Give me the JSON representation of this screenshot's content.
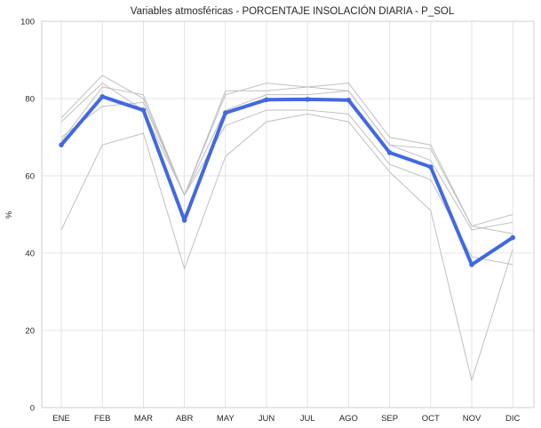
{
  "chart_data": {
    "type": "line",
    "title": "Variables atmosféricas - PORCENTAJE INSOLACIÓN DIARIA - P_SOL",
    "xlabel": "",
    "ylabel": "%",
    "categories": [
      "ENE",
      "FEB",
      "MAR",
      "ABR",
      "MAY",
      "JUN",
      "JUL",
      "AGO",
      "SEP",
      "OCT",
      "NOV",
      "DIC"
    ],
    "yticks": [
      "0",
      "20",
      "40",
      "60",
      "80",
      "100"
    ],
    "ylim": [
      0,
      100
    ],
    "grid": true,
    "legend": "none",
    "background_series": [
      {
        "values": [
          46,
          68,
          71,
          36,
          65,
          74,
          76,
          74,
          61,
          51,
          7,
          41
        ]
      },
      {
        "values": [
          70,
          78,
          79,
          55,
          73,
          77,
          77,
          76,
          63,
          59,
          39,
          37
        ]
      },
      {
        "values": [
          74,
          84,
          77,
          55,
          77,
          81,
          81,
          82,
          68,
          64,
          46,
          48
        ]
      },
      {
        "values": [
          75,
          86,
          80,
          55,
          82,
          82,
          83,
          82,
          68,
          67,
          47,
          45
        ]
      },
      {
        "values": [
          69,
          83,
          81,
          55,
          81,
          84,
          83,
          84,
          70,
          68,
          47,
          50
        ]
      }
    ],
    "main_series": {
      "values": [
        68,
        80.5,
        77,
        48.5,
        76.3,
        79.7,
        79.8,
        79.6,
        66,
        62.3,
        37,
        44
      ]
    },
    "colors": {
      "main": "#4169e1",
      "background": "#c0c0c0",
      "grid": "#dcdcdc",
      "axes": "#cfcfcf"
    }
  }
}
